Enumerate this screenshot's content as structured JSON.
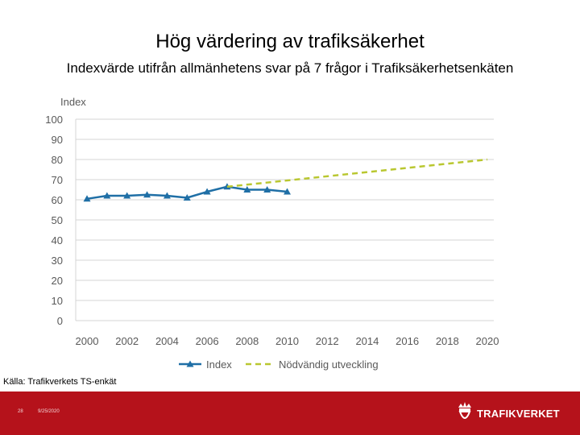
{
  "slide": {
    "title": "Hög värdering av trafiksäkerhet",
    "subtitle": "Indexvärde utifrån allmänhetens svar på 7 frågor i Trafiksäkerhetsenkäten",
    "source": "Källa: Trafikverkets TS-enkät",
    "page_number": "28",
    "date": "9/25/2020",
    "brand": "TRAFIKVERKET"
  },
  "colors": {
    "index": "#1f6fa6",
    "needed": "#b9c730",
    "grid": "#d4d4d4",
    "axis_text": "#595959",
    "footer": "#b5121b"
  },
  "chart_data": {
    "type": "line",
    "title": "",
    "ylabel": "Index",
    "xlabel": "",
    "ylim": [
      0,
      100
    ],
    "y_ticks": [
      0,
      10,
      20,
      30,
      40,
      50,
      60,
      70,
      80,
      90,
      100
    ],
    "xlim": [
      2000,
      2020
    ],
    "x_ticks": [
      2000,
      2002,
      2004,
      2006,
      2008,
      2010,
      2012,
      2014,
      2016,
      2018,
      2020
    ],
    "legend_position": "bottom",
    "series": [
      {
        "name": "Index",
        "style": "solid-triangle",
        "x": [
          2000,
          2001,
          2002,
          2003,
          2004,
          2005,
          2006,
          2007,
          2008,
          2009,
          2010
        ],
        "values": [
          60.5,
          62,
          62,
          62.5,
          62,
          61,
          64,
          66.5,
          65,
          65,
          64
        ]
      },
      {
        "name": "Nödvändig utveckling",
        "style": "dashed",
        "x": [
          2007,
          2020
        ],
        "values": [
          66.5,
          80
        ]
      }
    ]
  }
}
